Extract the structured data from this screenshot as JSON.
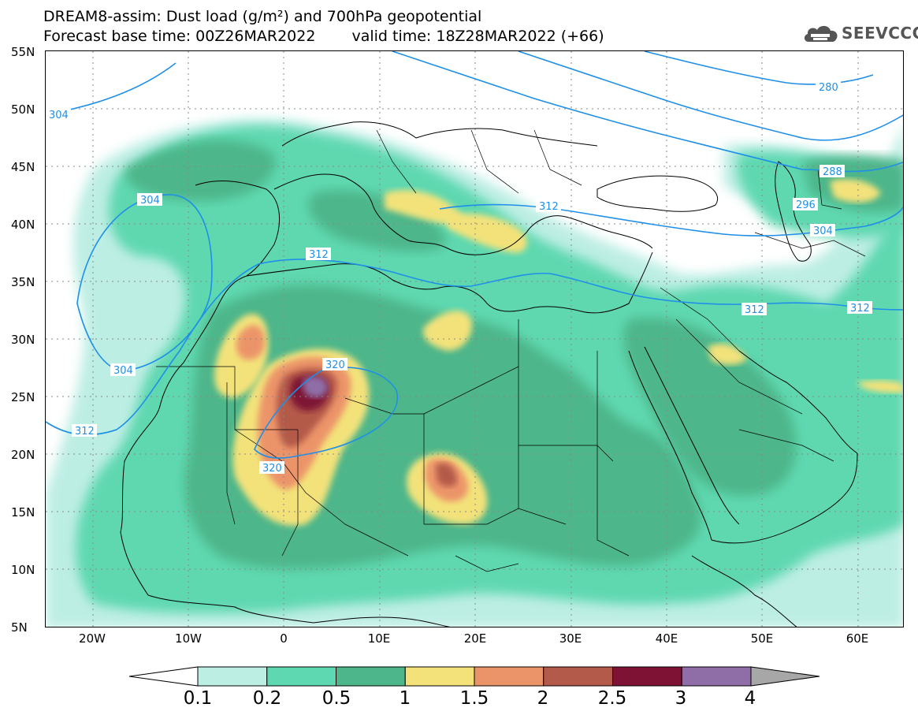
{
  "title": {
    "line1": "DREAM8-assim: Dust load (g/m²) and 700hPa geopotential",
    "line2_base": "Forecast base time: 00Z26MAR2022",
    "line2_valid": "valid time: 18Z28MAR2022 (+66)"
  },
  "logo": {
    "text": "SEEVCCC",
    "icon": "cloud-icon"
  },
  "map": {
    "lat_labels": [
      "55N",
      "50N",
      "45N",
      "40N",
      "35N",
      "30N",
      "25N",
      "20N",
      "15N",
      "10N",
      "5N"
    ],
    "lon_labels": [
      "20W",
      "10W",
      "0",
      "10E",
      "20E",
      "30E",
      "40E",
      "50E",
      "60E"
    ],
    "contour_labels": [
      "304",
      "280",
      "288",
      "296",
      "304",
      "312",
      "304",
      "312",
      "312",
      "320",
      "320",
      "304",
      "312",
      "312"
    ]
  },
  "colorbar": {
    "labels": [
      "0.1",
      "0.2",
      "0.5",
      "1",
      "1.5",
      "2",
      "2.5",
      "3",
      "4"
    ],
    "colors": [
      "#bdeee4",
      "#5ed8b0",
      "#4db68a",
      "#f3e27a",
      "#ec9469",
      "#b45a4a",
      "#7e1234",
      "#8f6ea7"
    ],
    "under_color": "#ffffff",
    "over_color": "#a7a7a7"
  },
  "styles": {
    "contour_color": "#1f8fe8",
    "land_border_color": "#000000",
    "gridline_color": "#888888"
  }
}
